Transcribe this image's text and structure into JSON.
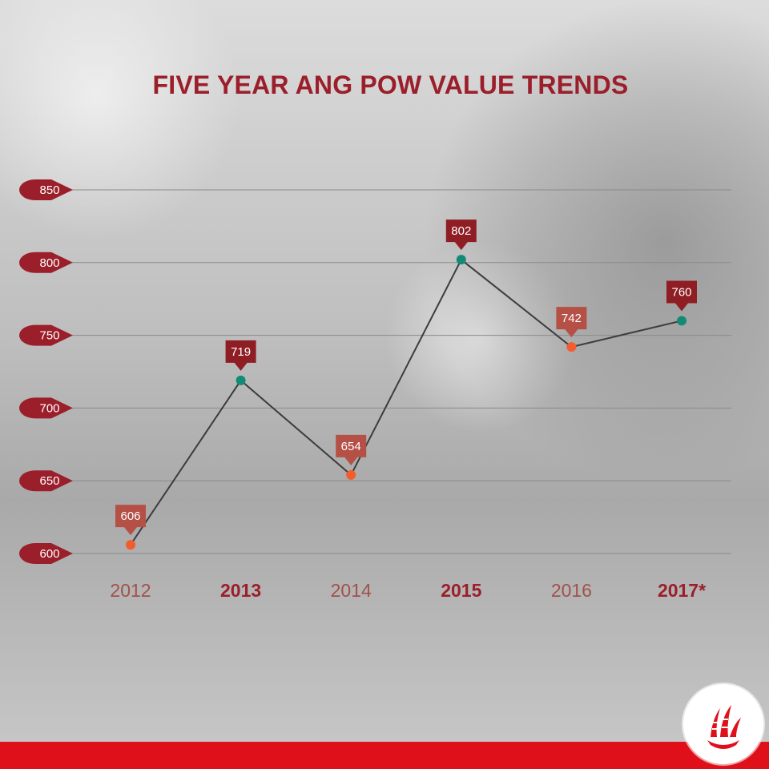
{
  "title": "FIVE YEAR ANG POW VALUE TRENDS",
  "colors": {
    "title": "#9b1f2a",
    "tag_dark": "#9b1f2a",
    "callout_orange": "#b55046",
    "callout_red": "#8f1d24",
    "dot_orange": "#f25c2e",
    "dot_teal": "#138a76",
    "line": "#3c3c3c",
    "grid": "#8a8a8a",
    "footer": "#e0101b"
  },
  "chart_data": {
    "type": "line",
    "title": "FIVE YEAR ANG POW VALUE TRENDS",
    "categories": [
      "2012",
      "2013",
      "2014",
      "2015",
      "2016",
      "2017*"
    ],
    "values": [
      606,
      719,
      654,
      802,
      742,
      760
    ],
    "value_labels": [
      "606",
      "719",
      "654",
      "802",
      "742",
      "760"
    ],
    "bold_categories": [
      false,
      true,
      false,
      true,
      false,
      true
    ],
    "ylim": [
      600,
      850
    ],
    "yticks": [
      "600",
      "650",
      "700",
      "750",
      "800",
      "850"
    ],
    "grid": true,
    "xlabel": "",
    "ylabel": ""
  },
  "logo": {
    "icon": "ship-sail-icon"
  }
}
